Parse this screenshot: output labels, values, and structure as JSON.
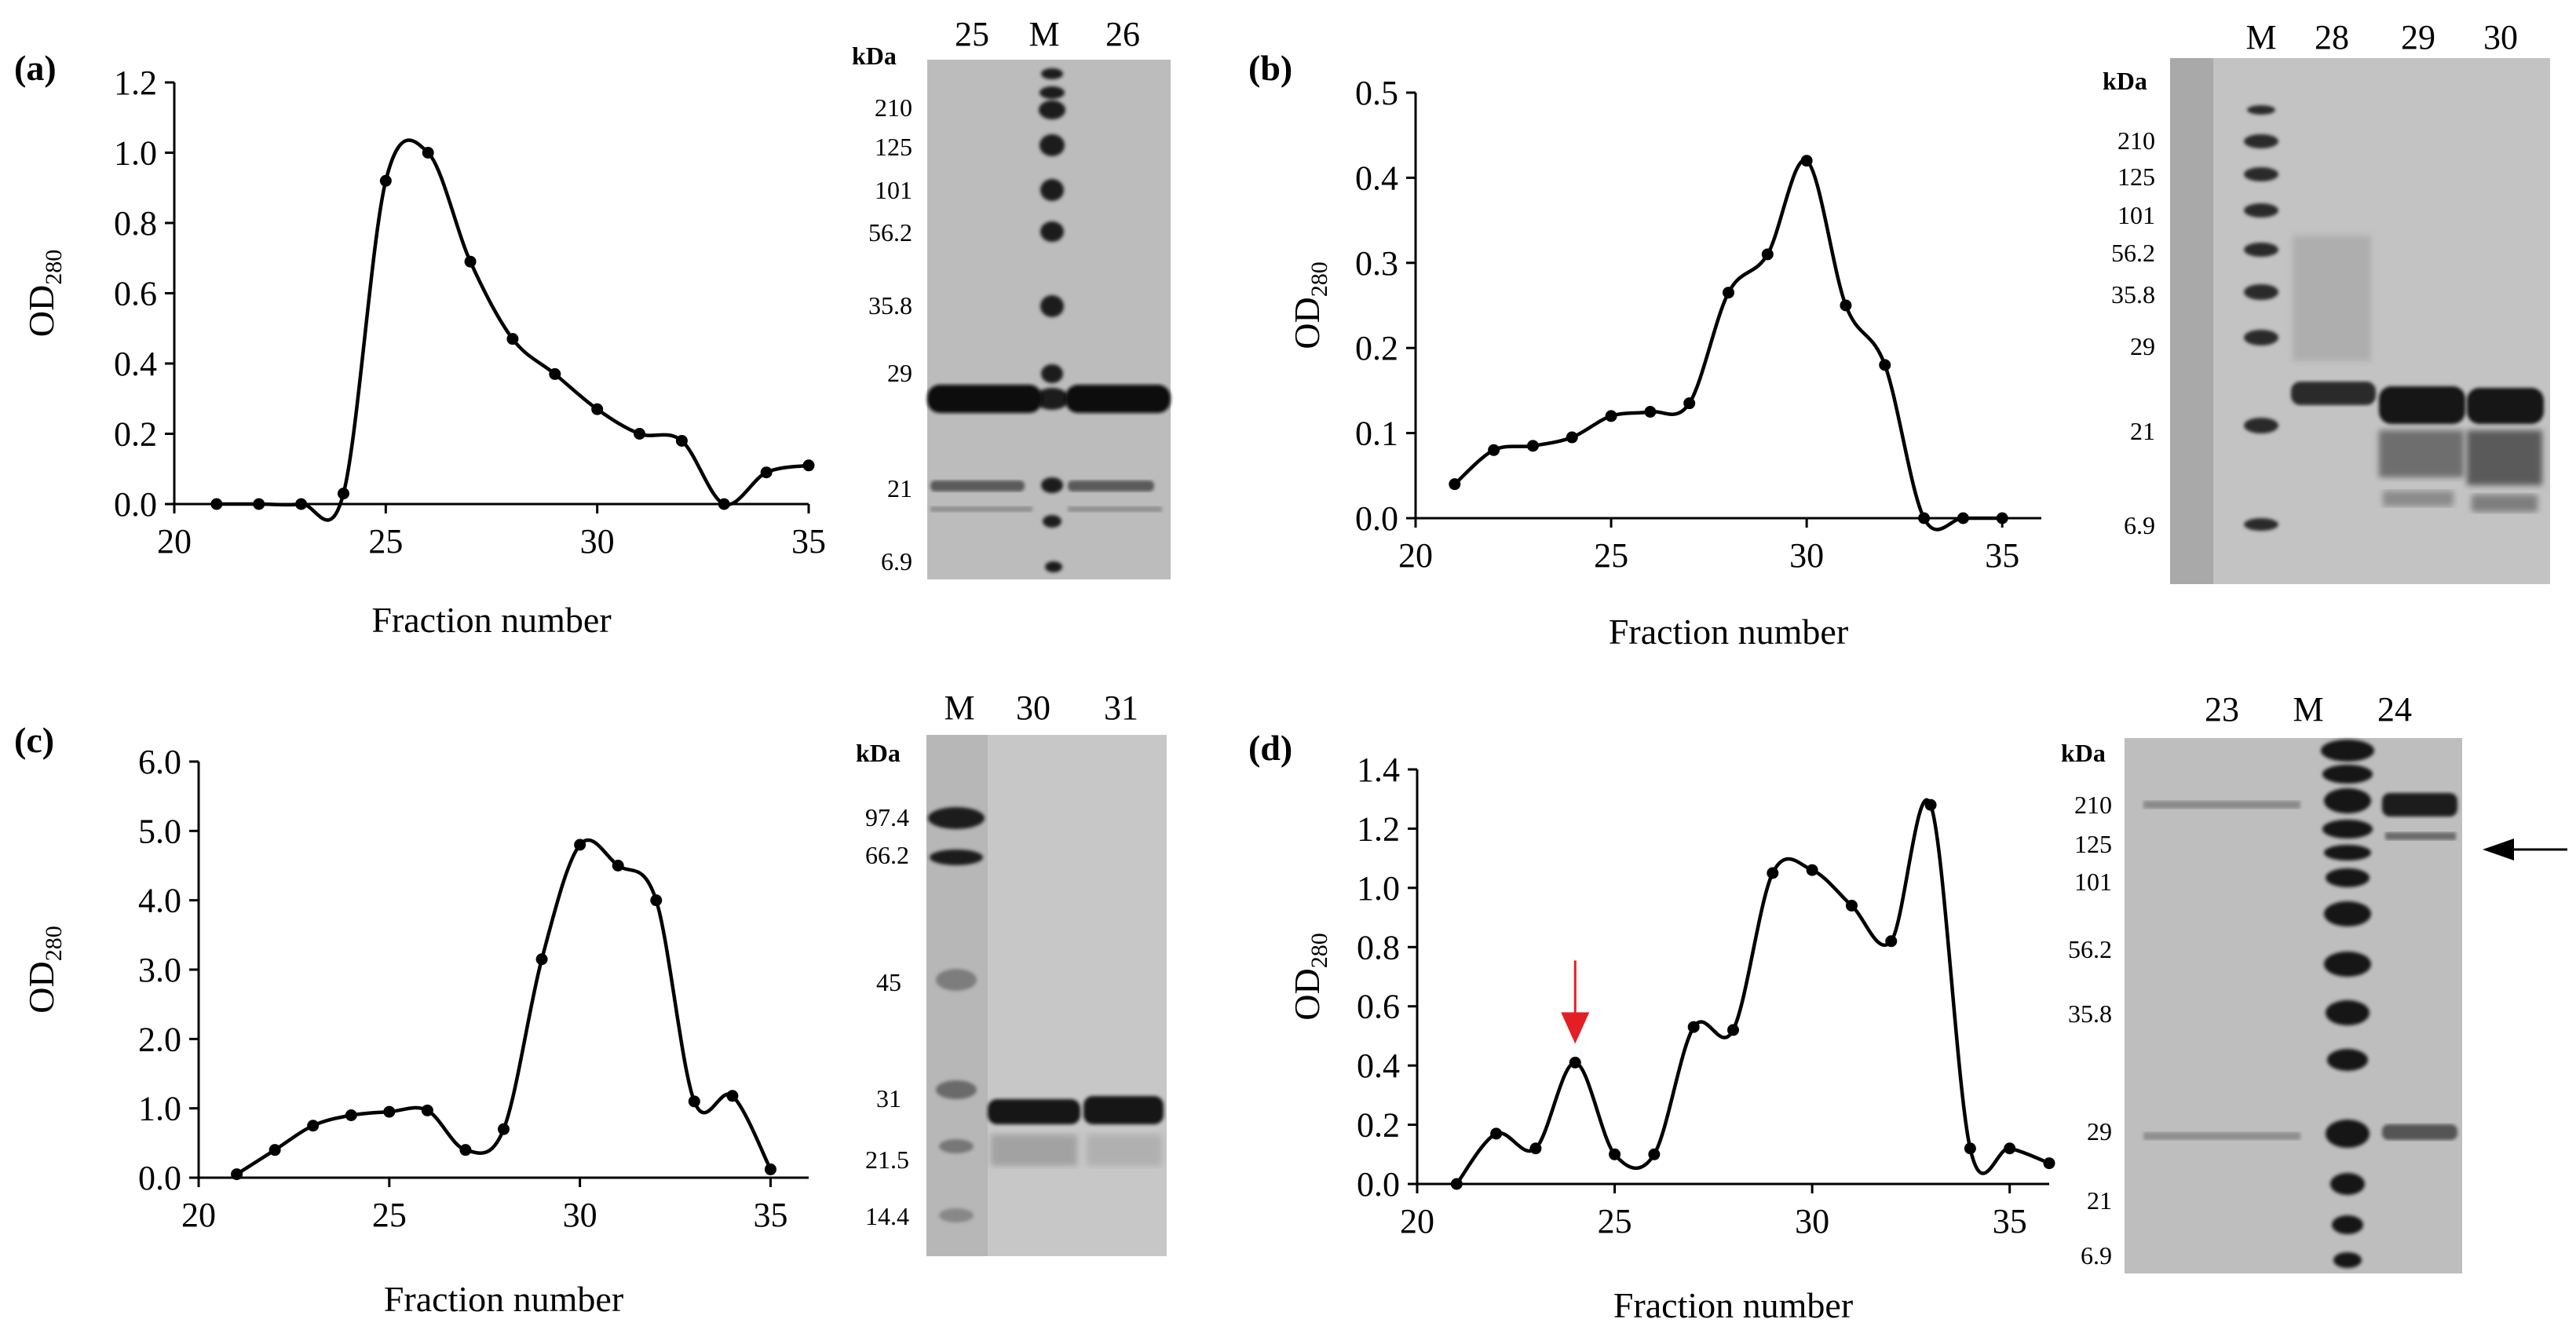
{
  "chart_data": [
    {
      "type": "line",
      "panel_label": "(a)",
      "title": "",
      "xlabel": "Fraction number",
      "ylabel": "OD",
      "ylabel_sub": "280",
      "xlim": [
        20,
        35
      ],
      "ylim": [
        0,
        1.2
      ],
      "xticks": [
        "20",
        "25",
        "30",
        "35"
      ],
      "yticks": [
        "0.0",
        "0.2",
        "0.4",
        "0.6",
        "0.8",
        "1.0",
        "1.2"
      ],
      "ytick_values": [
        0,
        0.2,
        0.4,
        0.6,
        0.8,
        1.0,
        1.2
      ],
      "xtick_values": [
        20,
        25,
        30,
        35
      ],
      "grid": false,
      "points": [
        [
          21,
          0.0
        ],
        [
          22,
          0.0
        ],
        [
          23,
          0.0
        ],
        [
          24,
          0.03
        ],
        [
          25,
          0.92
        ],
        [
          26,
          1.0
        ],
        [
          27,
          0.69
        ],
        [
          28,
          0.47
        ],
        [
          29,
          0.37
        ],
        [
          30,
          0.27
        ],
        [
          31,
          0.2
        ],
        [
          32,
          0.18
        ],
        [
          33,
          0.0
        ],
        [
          34,
          0.09
        ],
        [
          35,
          0.11
        ]
      ],
      "gel": {
        "kda_label": "kDa",
        "lanes": [
          "25",
          "M",
          "26"
        ],
        "marker_lane_index": 1,
        "mw_labels": [
          "210",
          "125",
          "101",
          "56.2",
          "35.8",
          "29",
          "21",
          "6.9"
        ]
      }
    },
    {
      "type": "line",
      "panel_label": "(b)",
      "title": "",
      "xlabel": "Fraction number",
      "ylabel": "OD",
      "ylabel_sub": "280",
      "xlim": [
        20,
        36
      ],
      "ylim": [
        0,
        0.5
      ],
      "xticks": [
        "20",
        "25",
        "30",
        "35"
      ],
      "yticks": [
        "0.0",
        "0.1",
        "0.2",
        "0.3",
        "0.4",
        "0.5"
      ],
      "ytick_values": [
        0,
        0.1,
        0.2,
        0.3,
        0.4,
        0.5
      ],
      "xtick_values": [
        20,
        25,
        30,
        35
      ],
      "grid": false,
      "points": [
        [
          21,
          0.04
        ],
        [
          22,
          0.08
        ],
        [
          23,
          0.085
        ],
        [
          24,
          0.095
        ],
        [
          25,
          0.12
        ],
        [
          26,
          0.125
        ],
        [
          27,
          0.135
        ],
        [
          28,
          0.265
        ],
        [
          29,
          0.31
        ],
        [
          30,
          0.42
        ],
        [
          31,
          0.25
        ],
        [
          32,
          0.18
        ],
        [
          33,
          0.0
        ],
        [
          34,
          0.0
        ],
        [
          35,
          0.0
        ]
      ],
      "gel": {
        "kda_label": "kDa",
        "lanes": [
          "M",
          "28",
          "29",
          "30"
        ],
        "marker_lane_index": 0,
        "mw_labels": [
          "210",
          "125",
          "101",
          "56.2",
          "35.8",
          "29",
          "21",
          "6.9"
        ]
      }
    },
    {
      "type": "line",
      "panel_label": "(c)",
      "title": "",
      "xlabel": "Fraction number",
      "ylabel": "OD",
      "ylabel_sub": "280",
      "xlim": [
        20,
        36
      ],
      "ylim": [
        0,
        6
      ],
      "xticks": [
        "20",
        "25",
        "30",
        "35"
      ],
      "yticks": [
        "0.0",
        "1.0",
        "2.0",
        "3.0",
        "4.0",
        "5.0",
        "6.0"
      ],
      "ytick_values": [
        0,
        1,
        2,
        3,
        4,
        5,
        6
      ],
      "xtick_values": [
        20,
        25,
        30,
        35
      ],
      "grid": false,
      "points": [
        [
          21,
          0.05
        ],
        [
          22,
          0.4
        ],
        [
          23,
          0.75
        ],
        [
          24,
          0.9
        ],
        [
          25,
          0.95
        ],
        [
          26,
          0.97
        ],
        [
          27,
          0.4
        ],
        [
          28,
          0.7
        ],
        [
          29,
          3.15
        ],
        [
          30,
          4.8
        ],
        [
          31,
          4.5
        ],
        [
          32,
          4.0
        ],
        [
          33,
          1.1
        ],
        [
          34,
          1.18
        ],
        [
          35,
          0.12
        ]
      ],
      "gel": {
        "kda_label": "kDa",
        "lanes": [
          "M",
          "30",
          "31"
        ],
        "marker_lane_index": 0,
        "mw_labels": [
          "97.4",
          "66.2",
          "45",
          "31",
          "21.5",
          "14.4"
        ]
      }
    },
    {
      "type": "line",
      "panel_label": "(d)",
      "title": "",
      "xlabel": "Fraction number",
      "ylabel": "OD",
      "ylabel_sub": "280",
      "xlim": [
        20,
        36
      ],
      "ylim": [
        0,
        1.4
      ],
      "xticks": [
        "20",
        "25",
        "30",
        "35"
      ],
      "yticks": [
        "0.0",
        "0.2",
        "0.4",
        "0.6",
        "0.8",
        "1.0",
        "1.2",
        "1.4"
      ],
      "ytick_values": [
        0,
        0.2,
        0.4,
        0.6,
        0.8,
        1.0,
        1.2,
        1.4
      ],
      "xtick_values": [
        20,
        25,
        30,
        35
      ],
      "grid": false,
      "points": [
        [
          21,
          0.0
        ],
        [
          22,
          0.17
        ],
        [
          23,
          0.12
        ],
        [
          24,
          0.41
        ],
        [
          25,
          0.1
        ],
        [
          26,
          0.1
        ],
        [
          27,
          0.53
        ],
        [
          28,
          0.52
        ],
        [
          29,
          1.05
        ],
        [
          30,
          1.06
        ],
        [
          31,
          0.94
        ],
        [
          32,
          0.82
        ],
        [
          33,
          1.28
        ],
        [
          34,
          0.12
        ],
        [
          35,
          0.12
        ],
        [
          36,
          0.07
        ]
      ],
      "annotation": {
        "type": "arrow",
        "color": "#e31e24",
        "x": 24
      },
      "gel": {
        "kda_label": "kDa",
        "lanes": [
          "23",
          "M",
          "24"
        ],
        "marker_lane_index": 1,
        "mw_labels": [
          "210",
          "125",
          "101",
          "56.2",
          "35.8",
          "29",
          "21",
          "6.9"
        ],
        "band_arrow": "black"
      }
    }
  ]
}
